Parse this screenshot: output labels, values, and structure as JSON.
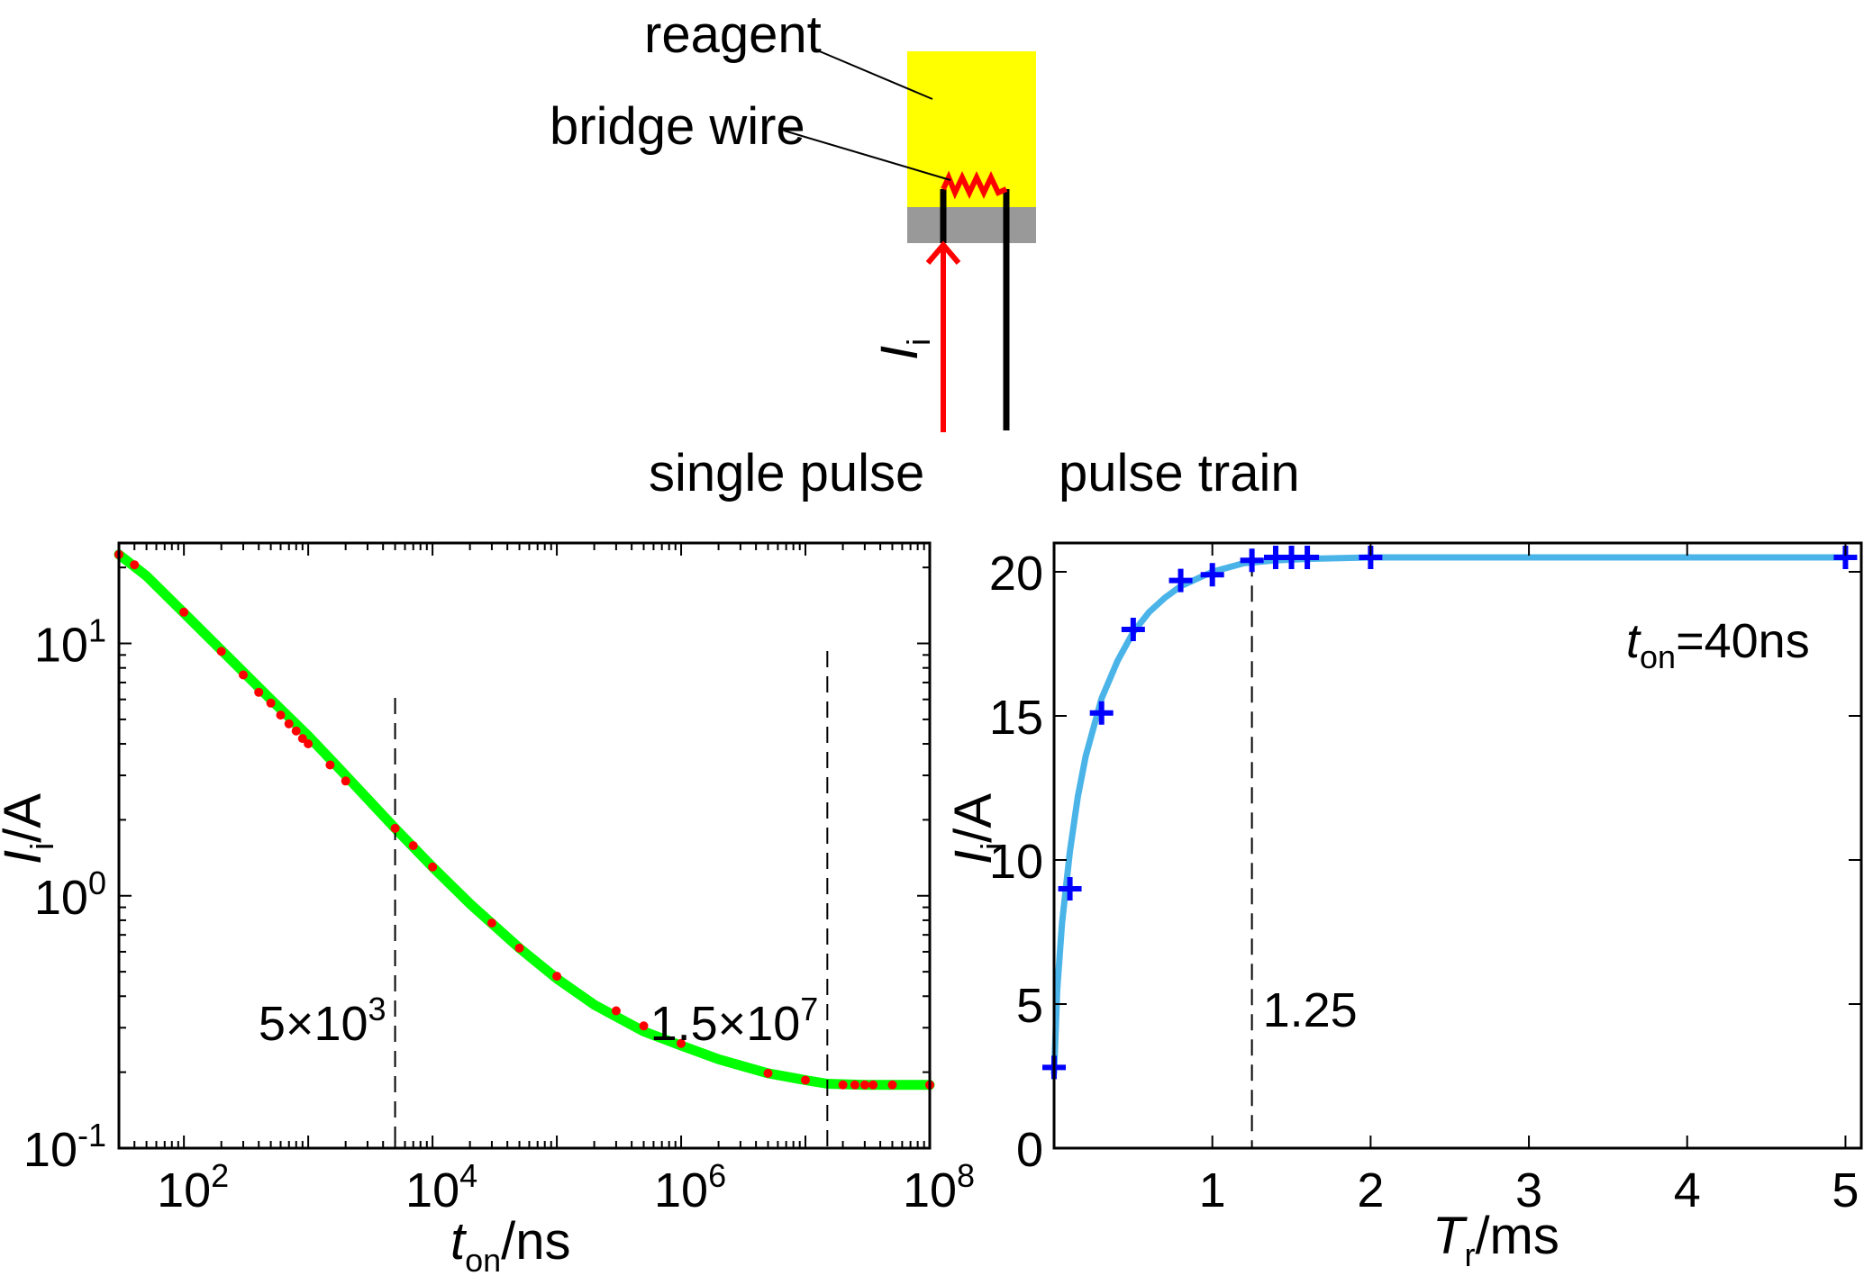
{
  "diagram": {
    "reagent_label": "reagent",
    "bridge_wire_label": "bridge wire",
    "current_label_main": "I",
    "current_label_sub": "i",
    "single_pulse_label": "single pulse",
    "pulse_train_label": "pulse train",
    "colors": {
      "reagent": "#ffff00",
      "base": "#999999",
      "wire": "#ff0000",
      "lead": "#000000",
      "current_arrow": "#ff0000"
    }
  },
  "chart_data": [
    {
      "type": "line",
      "panel": "single pulse",
      "xscale": "log",
      "yscale": "log",
      "xlim": [
        30,
        100000000
      ],
      "ylim": [
        0.1,
        25
      ],
      "x_ticks": [
        {
          "mantissa": "10",
          "exp": "2",
          "value": 100
        },
        {
          "mantissa": "10",
          "exp": "4",
          "value": 10000
        },
        {
          "mantissa": "10",
          "exp": "6",
          "value": 1000000
        },
        {
          "mantissa": "10",
          "exp": "8",
          "value": 100000000
        }
      ],
      "y_ticks": [
        {
          "mantissa": "10",
          "exp": "-1",
          "value": 0.1
        },
        {
          "mantissa": "10",
          "exp": "0",
          "value": 1
        },
        {
          "mantissa": "10",
          "exp": "1",
          "value": 10
        }
      ],
      "xlabel": {
        "main": "t",
        "sub": "on",
        "suffix": "/ns"
      },
      "ylabel": {
        "main": "I",
        "sub": "i",
        "suffix": "/A"
      },
      "fit_curve": {
        "color": "#00ff00",
        "x": [
          30,
          50,
          100,
          200,
          500,
          1000,
          2000,
          5000,
          10000,
          20000,
          50000,
          100000,
          200000,
          500000,
          1000000,
          2000000,
          5000000,
          10000000,
          15000000,
          30000000,
          100000000
        ],
        "y": [
          22.5,
          18.5,
          13.2,
          9.4,
          6.0,
          4.3,
          3.0,
          1.85,
          1.3,
          0.93,
          0.62,
          0.47,
          0.37,
          0.29,
          0.255,
          0.225,
          0.198,
          0.186,
          0.18,
          0.178,
          0.178
        ]
      },
      "points": {
        "color": "#ff0000",
        "x": [
          30,
          40,
          100,
          200,
          300,
          400,
          500,
          600,
          700,
          800,
          900,
          1000,
          1500,
          2000,
          5000,
          7000,
          10000,
          30000,
          50000,
          100000,
          300000,
          500000,
          1000000,
          5000000,
          10000000,
          20000000,
          25000000,
          30000000,
          35000000,
          50000000,
          100000000
        ],
        "y": [
          22.5,
          20.5,
          13.3,
          9.3,
          7.5,
          6.4,
          5.8,
          5.2,
          4.8,
          4.5,
          4.2,
          4.0,
          3.3,
          2.85,
          1.85,
          1.58,
          1.3,
          0.78,
          0.62,
          0.48,
          0.35,
          0.305,
          0.26,
          0.198,
          0.186,
          0.178,
          0.178,
          0.178,
          0.178,
          0.178,
          0.178
        ]
      },
      "annotations": [
        {
          "x": 5000,
          "text": "5×10",
          "exp": "3"
        },
        {
          "x": 15000000,
          "text": "1.5×10",
          "exp": "7"
        }
      ]
    },
    {
      "type": "line",
      "panel": "pulse train",
      "xlim": [
        0,
        5.1
      ],
      "ylim": [
        0,
        21
      ],
      "x_ticks": [
        1,
        2,
        3,
        4,
        5
      ],
      "y_ticks": [
        0,
        5,
        10,
        15,
        20
      ],
      "xlabel": {
        "main": "T",
        "sub": "r",
        "suffix": "/ms"
      },
      "ylabel": {
        "main": "I",
        "sub": "i",
        "suffix": "/A"
      },
      "fit_curve": {
        "color": "#4ab4e8",
        "x": [
          0,
          0.02,
          0.05,
          0.1,
          0.15,
          0.2,
          0.3,
          0.4,
          0.5,
          0.6,
          0.7,
          0.8,
          1.0,
          1.2,
          1.4,
          1.6,
          2.0,
          3.0,
          4.0,
          5.0
        ],
        "y": [
          2.6,
          5.5,
          7.8,
          10.3,
          12.2,
          13.6,
          15.6,
          16.9,
          17.9,
          18.6,
          19.1,
          19.5,
          20.0,
          20.3,
          20.4,
          20.45,
          20.5,
          20.5,
          20.5,
          20.5
        ]
      },
      "points": {
        "color": "#0000ff",
        "x": [
          0.0,
          0.1,
          0.3,
          0.5,
          0.8,
          1.0,
          1.25,
          1.4,
          1.5,
          1.6,
          2.0,
          5.0
        ],
        "y": [
          2.8,
          9.0,
          15.1,
          18.0,
          19.7,
          19.9,
          20.4,
          20.5,
          20.5,
          20.5,
          20.5,
          20.5
        ]
      },
      "annotations": [
        {
          "x": 1.25,
          "text": "1.25"
        }
      ],
      "inset_label": {
        "main": "t",
        "sub": "on",
        "suffix": "=40ns"
      }
    }
  ]
}
